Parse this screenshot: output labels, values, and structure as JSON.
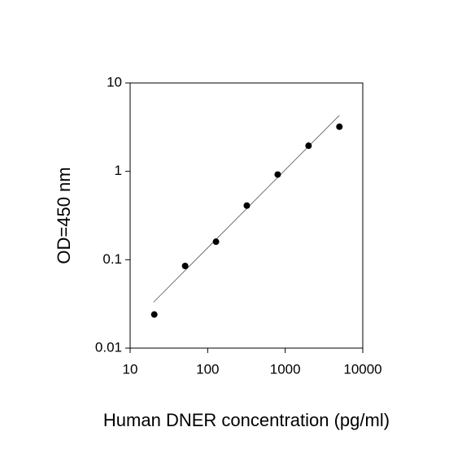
{
  "chart_data": {
    "type": "scatter",
    "x_label": "Human DNER concentration (pg/ml)",
    "y_label": "OD=450 nm",
    "x": [
      20.48,
      51.2,
      128,
      320,
      800,
      2000,
      5000
    ],
    "values": [
      0.024,
      0.085,
      0.16,
      0.41,
      0.92,
      1.95,
      3.2
    ],
    "color": "#000000",
    "fit": {
      "x": [
        20,
        5000
      ],
      "values": [
        0.033,
        4.3
      ]
    },
    "xlim": [
      10,
      10000
    ],
    "ylim": [
      0.01,
      10
    ],
    "xticks": [
      10,
      100,
      1000,
      10000
    ],
    "yticks": [
      0.01,
      0.1,
      1,
      10
    ],
    "xscale": "log",
    "yscale": "log",
    "grid": false
  }
}
